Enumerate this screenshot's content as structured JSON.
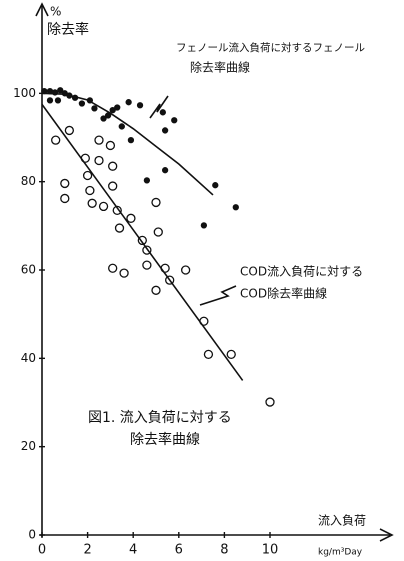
{
  "chart_data": {
    "type": "scatter",
    "ylabel": [
      "%",
      "除去率"
    ],
    "xlabel": "流入負荷",
    "xunit": "kg/m³Day",
    "xlim": [
      0,
      15
    ],
    "ylim": [
      0,
      120
    ],
    "xticks": [
      0,
      2,
      4,
      6,
      8,
      10
    ],
    "yticks": [
      0,
      20,
      40,
      60,
      80,
      100
    ],
    "series": [
      {
        "marker": "filled",
        "color": "#111",
        "x": [
          0.1,
          0.35,
          0.57,
          0.8,
          1.0,
          1.2,
          0.35,
          0.7,
          1.45,
          1.75,
          2.1,
          2.3,
          2.7,
          2.9,
          3.1,
          3.3,
          3.5,
          3.8,
          3.9,
          4.3,
          4.6,
          5.3,
          5.4,
          5.4,
          5.8,
          7.1,
          7.6,
          8.5
        ],
        "values": [
          100.5,
          100.5,
          100.2,
          100.7,
          100,
          99.5,
          98.4,
          98.4,
          99,
          97.7,
          98.4,
          96.6,
          94.3,
          95,
          96.2,
          96.8,
          92.5,
          98,
          89.4,
          97.3,
          80.3,
          95.7,
          91.6,
          82.6,
          93.9,
          70.1,
          79.2,
          74.2
        ]
      },
      {
        "marker": "open",
        "color": "#111",
        "x": [
          0.6,
          1.0,
          1.0,
          1.2,
          1.9,
          2.0,
          2.1,
          2.2,
          2.5,
          2.5,
          2.7,
          3.0,
          3.1,
          3.1,
          3.3,
          3.4,
          3.9,
          4.4,
          4.6,
          5.0,
          5.1,
          3.1,
          3.6,
          4.6,
          5.0,
          5.4,
          5.6,
          6.3,
          7.1,
          7.3,
          8.3,
          10.0
        ],
        "values": [
          89.4,
          79.6,
          76.2,
          91.6,
          85.3,
          81.4,
          78,
          75.1,
          89.4,
          84.8,
          74.4,
          88.2,
          79,
          83.5,
          73.5,
          69.5,
          71.7,
          66.7,
          64.5,
          75.3,
          68.6,
          60.4,
          59.3,
          61.1,
          55.4,
          60.4,
          57.7,
          60,
          48.4,
          40.9,
          40.9,
          30.1
        ]
      }
    ],
    "curves": [
      {
        "color": "#111",
        "x": [
          0,
          1,
          2,
          3,
          4,
          5,
          6,
          7.5
        ],
        "values": [
          100,
          99.8,
          98.5,
          95.5,
          92,
          88,
          84,
          77
        ]
      },
      {
        "color": "#111",
        "x": [
          0,
          8.8
        ],
        "values": [
          97.5,
          35
        ]
      }
    ],
    "annotations": {
      "phenol": [
        "フェノール流入負荷に対するフェノール",
        "除去率曲線"
      ],
      "cod": [
        "COD流入負荷に対する",
        "COD除去率曲線"
      ],
      "figure": [
        "図1. 流入負荷に対する",
        "除去率曲線"
      ]
    }
  }
}
